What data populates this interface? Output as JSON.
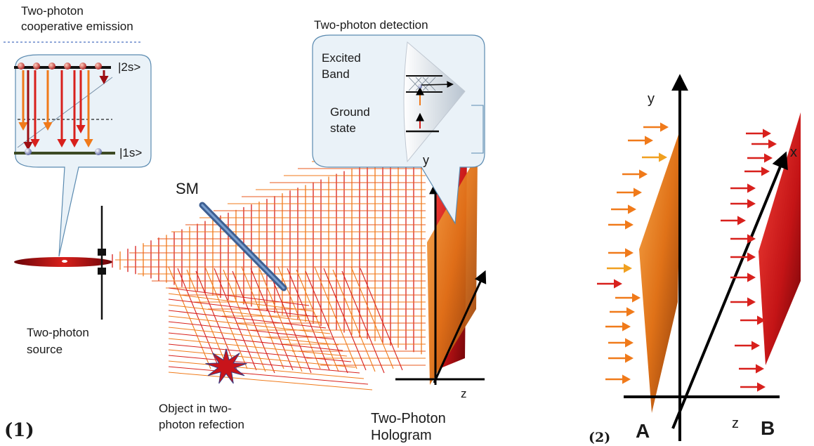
{
  "panel1": {
    "label": "(1)",
    "emission_title_line1": "Two-photon",
    "emission_title_line2": "cooperative emission",
    "level_upper": "|2s>",
    "level_lower": "|1s>",
    "detection_title": "Two-photon detection",
    "excited_band_line1": "Excited",
    "excited_band_line2": "Band",
    "ground_state_line1": "Ground",
    "ground_state_line2": "state",
    "axis_y": "y",
    "axis_z": "z",
    "sm_label": "SM",
    "source_line1": "Two-photon",
    "source_line2": "source",
    "object_line1": "Object in two-",
    "object_line2": "photon refection",
    "hologram_line1": "Two-Photon",
    "hologram_line2": "Hologram"
  },
  "panel2": {
    "label": "(2)",
    "axis_y": "y",
    "axis_x": "x",
    "axis_z": "z",
    "label_a": "A",
    "label_b": "B"
  },
  "colors": {
    "red": "#d8201c",
    "orange": "#f07a1a",
    "dark_red": "#9c0d12",
    "mirror_blue": "#4f79b3",
    "bubble_fill": "#eaf2f8",
    "bubble_stroke": "#5a8ab0"
  }
}
